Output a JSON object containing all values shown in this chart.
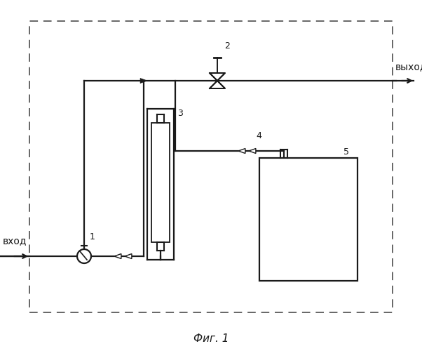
{
  "title": "Фиг. 1",
  "label_input": "вход",
  "label_output": "выход",
  "label_1": "1",
  "label_2": "2",
  "label_3": "3",
  "label_4": "4",
  "label_5": "5",
  "bg_color": "#ffffff",
  "line_color": "#1a1a1a",
  "dashed_border_color": "#666666",
  "fig_width": 6.02,
  "fig_height": 5.0,
  "dpi": 100
}
